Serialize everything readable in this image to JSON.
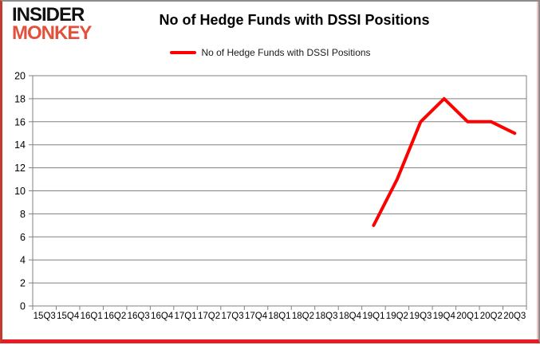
{
  "header": {
    "logo": {
      "line1": "INSIDER",
      "line2": "MONKEY"
    },
    "title": "No of Hedge Funds with DSSI Positions"
  },
  "legend": {
    "label": "No of Hedge Funds with DSSI Positions",
    "marker": "red-line",
    "marker_color": "#ff0000"
  },
  "chart_data": {
    "type": "line",
    "title": "No of Hedge Funds with DSSI Positions",
    "categories": [
      "15Q3",
      "15Q4",
      "16Q1",
      "16Q2",
      "16Q3",
      "16Q4",
      "17Q1",
      "17Q2",
      "17Q3",
      "17Q4",
      "18Q1",
      "18Q2",
      "18Q3",
      "18Q4",
      "19Q1",
      "19Q2",
      "19Q3",
      "19Q4",
      "20Q1",
      "20Q2",
      "20Q3"
    ],
    "series": [
      {
        "name": "No of Hedge Funds with DSSI Positions",
        "color": "#ff0000",
        "values": [
          null,
          null,
          null,
          null,
          null,
          null,
          null,
          null,
          null,
          null,
          null,
          null,
          null,
          null,
          7,
          11,
          16,
          18,
          16,
          16,
          15
        ]
      }
    ],
    "xlabel": "",
    "ylabel": "",
    "ylim": [
      0,
      20
    ],
    "yticks": [
      0,
      2,
      4,
      6,
      8,
      10,
      12,
      14,
      16,
      18,
      20
    ],
    "grid": true,
    "grid_color": "#808080",
    "legend_position": "top"
  },
  "colors": {
    "accent_red": "#ff0000",
    "logo_red": "#e2513b",
    "frame_bottom_red": "#ea1c23",
    "frame_left_red": "#c23b33",
    "frame_grey": "#8c8c8c"
  }
}
